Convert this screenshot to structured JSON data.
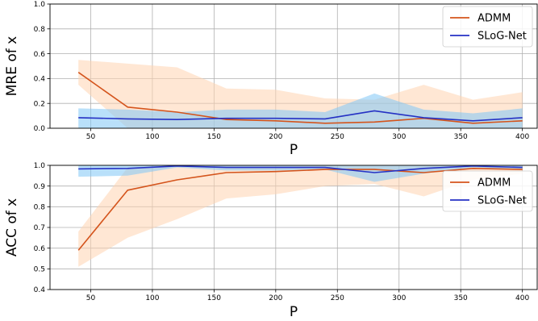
{
  "chart_data": [
    {
      "type": "line",
      "xlabel": "P",
      "ylabel": "MRE of x",
      "x": [
        40,
        80,
        120,
        160,
        200,
        240,
        280,
        320,
        360,
        400
      ],
      "xlim": [
        17,
        412
      ],
      "ylim": [
        0,
        1
      ],
      "xticks": [
        50,
        100,
        150,
        200,
        250,
        300,
        350,
        400
      ],
      "yticks": [
        0,
        0.2,
        0.4,
        0.6,
        0.8,
        1.0
      ],
      "ytick_labels": [
        "0.0",
        "0.2",
        "0.4",
        "0.6",
        "0.8",
        "1.0"
      ],
      "grid": true,
      "legend_position": "top-right",
      "series": [
        {
          "name": "ADMM",
          "color": "#d4541c",
          "band_color": "#ffd3b0",
          "values": [
            0.45,
            0.17,
            0.13,
            0.07,
            0.06,
            0.04,
            0.05,
            0.08,
            0.04,
            0.06
          ],
          "lower": [
            0.35,
            0.0,
            0.0,
            0.0,
            0.0,
            0.0,
            0.0,
            0.0,
            0.0,
            0.0
          ],
          "upper": [
            0.55,
            0.52,
            0.49,
            0.32,
            0.31,
            0.24,
            0.23,
            0.35,
            0.23,
            0.29
          ]
        },
        {
          "name": "SLoG-Net",
          "color": "#2531c4",
          "band_color": "#7fc6f5",
          "values": [
            0.085,
            0.075,
            0.07,
            0.08,
            0.08,
            0.075,
            0.14,
            0.085,
            0.06,
            0.085
          ],
          "lower": [
            0.0,
            0.0,
            0.0,
            0.0,
            0.0,
            0.0,
            0.0,
            0.0,
            0.0,
            0.0
          ],
          "upper": [
            0.16,
            0.15,
            0.13,
            0.15,
            0.15,
            0.13,
            0.28,
            0.15,
            0.12,
            0.16
          ]
        }
      ]
    },
    {
      "type": "line",
      "xlabel": "P",
      "ylabel": "ACC of x",
      "x": [
        40,
        80,
        120,
        160,
        200,
        240,
        280,
        320,
        360,
        400
      ],
      "xlim": [
        17,
        412
      ],
      "ylim": [
        0.4,
        1.0
      ],
      "xticks": [
        50,
        100,
        150,
        200,
        250,
        300,
        350,
        400
      ],
      "yticks": [
        0.4,
        0.5,
        0.6,
        0.7,
        0.8,
        0.9,
        1.0
      ],
      "ytick_labels": [
        "0.4",
        "0.5",
        "0.6",
        "0.7",
        "0.8",
        "0.9",
        "1.0"
      ],
      "grid": true,
      "legend_position": "right",
      "series": [
        {
          "name": "ADMM",
          "color": "#d4541c",
          "band_color": "#ffd3b0",
          "values": [
            0.59,
            0.88,
            0.93,
            0.965,
            0.97,
            0.98,
            0.98,
            0.965,
            0.985,
            0.98
          ],
          "lower": [
            0.51,
            0.65,
            0.74,
            0.84,
            0.86,
            0.9,
            0.91,
            0.85,
            0.93,
            0.96
          ],
          "upper": [
            0.68,
            0.99,
            1.0,
            1.0,
            1.0,
            1.0,
            1.0,
            1.0,
            1.0,
            1.0
          ]
        },
        {
          "name": "SLoG-Net",
          "color": "#2531c4",
          "band_color": "#7fc6f5",
          "values": [
            0.983,
            0.985,
            0.997,
            0.99,
            0.99,
            0.99,
            0.965,
            0.985,
            0.997,
            0.99
          ],
          "lower": [
            0.945,
            0.95,
            0.99,
            0.975,
            0.975,
            0.98,
            0.92,
            0.96,
            0.99,
            0.98
          ],
          "upper": [
            1.0,
            1.0,
            1.0,
            1.0,
            1.0,
            1.0,
            1.0,
            1.0,
            1.0,
            1.0
          ]
        }
      ]
    }
  ]
}
